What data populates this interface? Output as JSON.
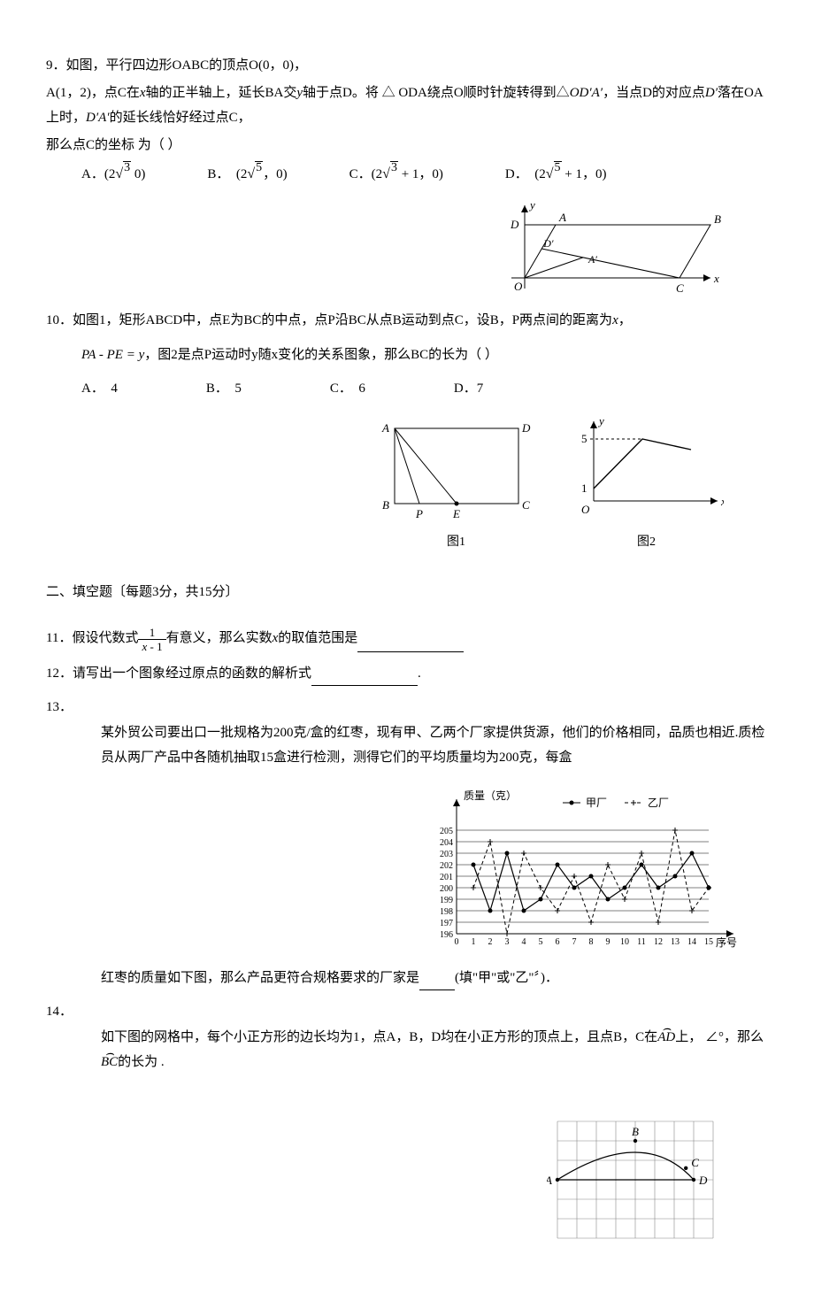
{
  "q9": {
    "line1": "9．如图，平行四边形OABC的顶点O(0，0)，",
    "line2_a": "A(1，2)，点C在",
    "line2_b": "x",
    "line2_c": "轴的正半轴上，延长BA交",
    "line2_d": "y",
    "line2_e": "轴于点D。将 △ ODA绕点O顺时针旋转得到△",
    "line2_f": "OD′A′",
    "line2_g": "，当点D的对应点",
    "line2_h": "D′",
    "line2_i": "落在OA上时，",
    "line2_j": "D′A′",
    "line2_k": "的延长线恰好经过点C，",
    "line3": "那么点C的坐标 为（  ）",
    "optA_1": "A．(2",
    "optA_sqrt": "3",
    "optA_2": "  0)",
    "optB_1": "B．　(2",
    "optB_sqrt": "5",
    "optB_2": "，0)",
    "optC_1": "C．(2",
    "optC_sqrt": "3",
    "optC_2": " + 1，0)",
    "optD_1": "D．　(2",
    "optD_sqrt": "5",
    "optD_2": " + 1，0)"
  },
  "fig9": {
    "O": "O",
    "A": "A",
    "B": "B",
    "C": "C",
    "D": "D",
    "Dp": "D′",
    "Ap": "A′",
    "x": "x",
    "y": "y",
    "stroke": "#000000",
    "bg": "#ffffff"
  },
  "q10": {
    "line1_a": "10．如图1，矩形ABCD中，点E为BC的中点，点P沿BC从点B运动到点C，设B，P两点间的距离为",
    "line1_b": "x",
    "line1_c": "，",
    "line2_a": "PA - PE = y",
    "line2_b": "，图2是点P运动时y随x变化的关系图象，那么BC的长为（ ）",
    "optA": "A．　4",
    "optB": "B．　5",
    "optC": "C．　6",
    "optD": "D．7"
  },
  "fig10_1": {
    "A": "A",
    "B": "B",
    "C": "C",
    "D": "D",
    "E": "E",
    "P": "P",
    "caption": "图1",
    "stroke": "#000000"
  },
  "fig10_2": {
    "x": "x",
    "y": "y",
    "v1": "1",
    "v5": "5",
    "O": "O",
    "caption": "图2",
    "stroke": "#000000"
  },
  "sec2": {
    "title": "二、填空题〔每题3分，共15分〕"
  },
  "q11": {
    "a": "11．假设代数式",
    "frac_num": "1",
    "frac_den_a": "x",
    "frac_den_b": " - 1",
    "b": "有意义，那么实数",
    "c": "x",
    "d": "的取值范围是"
  },
  "q12": {
    "a": "12．请写出一个图象经过原点的函数的解析式",
    "dot": "."
  },
  "q13": {
    "num": "13．",
    "a": "某外贸公司要出口一批规格为200克/盒的红枣，现有甲、乙两个厂家提供货源，他们的价格相同，品质也相近.质检员从两厂产品中各随机抽取15盒进行检测，测得它们的平均质量均为200克，每盒",
    "b": "红枣的质量如下图，那么产品更符合规格要求的厂家是",
    "c": "(填\"甲\"或\"乙\"〞)．"
  },
  "fig13": {
    "ylabel": "质量（克）",
    "xlabel": "序号",
    "legend_a": "甲厂",
    "legend_b": "乙厂",
    "yticks": [
      "205",
      "204",
      "203",
      "202",
      "201",
      "200",
      "199",
      "198",
      "197",
      "196"
    ],
    "xticks": [
      "0",
      "1",
      "2",
      "3",
      "4",
      "5",
      "6",
      "7",
      "8",
      "9",
      "10",
      "11",
      "12",
      "13",
      "14",
      "15"
    ],
    "jia_y": [
      202,
      198,
      203,
      198,
      199,
      202,
      200,
      201,
      199,
      200,
      202,
      200,
      201,
      203,
      200
    ],
    "yi_y": [
      200,
      204,
      196,
      203,
      200,
      198,
      201,
      197,
      202,
      199,
      203,
      197,
      205,
      198,
      200
    ],
    "stroke": "#000000",
    "grid": "#000000"
  },
  "q14": {
    "num": "14．",
    "a": "如下图的网格中，每个小正方形的边长均为1，点A，B，D均在小正方形的顶点上，且点B，C在",
    "arc1": "AD",
    "b": "上，",
    "c": "∠",
    "d": "°，那么",
    "arc2": "BC",
    "e": "的长为  ."
  },
  "fig14": {
    "A": "A",
    "B": "B",
    "C": "C",
    "D": "D",
    "rows": 6,
    "cols": 8,
    "cell": 22,
    "A_pos": [
      0,
      3
    ],
    "B_pos": [
      4,
      1
    ],
    "D_pos": [
      7,
      3
    ],
    "C_pos": [
      6.6,
      2.4
    ],
    "stroke": "#000000",
    "grid": "#888888"
  }
}
